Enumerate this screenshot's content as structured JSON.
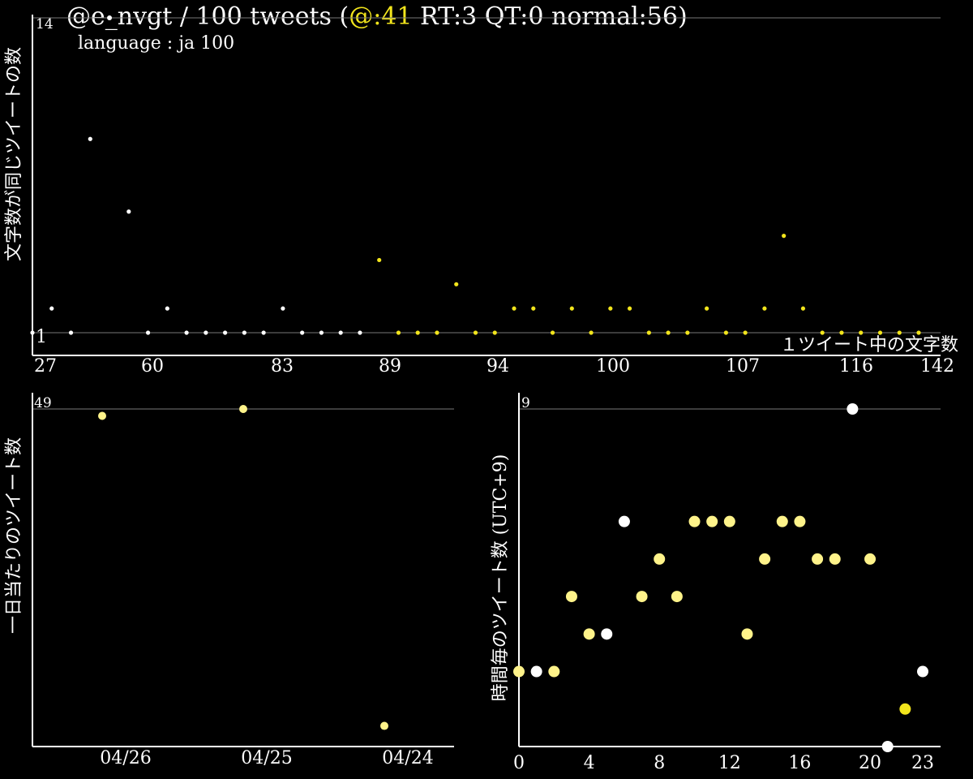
{
  "header": {
    "title_prefix": "@e_nvgt / 100 tweets (",
    "title_accent": "@:41",
    "title_suffix": " RT:3 QT:0 normal:56)",
    "language": "language : ja 100"
  },
  "colors": {
    "white": "#ffffff",
    "yellow": "#f2e51c",
    "pale_yellow": "#fff38a",
    "grid": "#777777"
  },
  "chart_data": [
    {
      "type": "scatter",
      "ylabel": "文字数が同じツイートの数",
      "xlabel": "１ツイート中の文字数",
      "ylim": [
        1,
        14
      ],
      "y_tick_labels": [
        "14",
        "1"
      ],
      "x_tick_labels": [
        "27",
        "60",
        "83",
        "89",
        "94",
        "100",
        "107",
        "116",
        "142"
      ],
      "grid": "horizontal",
      "series": [
        {
          "color": "white",
          "points": [
            [
              27,
              1
            ],
            [
              28,
              2
            ],
            [
              29,
              1
            ],
            [
              30,
              9
            ],
            [
              31,
              14
            ],
            [
              32,
              6
            ],
            [
              33,
              1
            ],
            [
              34,
              2
            ],
            [
              35,
              1
            ],
            [
              36,
              1
            ],
            [
              37,
              1
            ],
            [
              38,
              1
            ],
            [
              39,
              1
            ],
            [
              40,
              2
            ],
            [
              41,
              1
            ],
            [
              42,
              1
            ],
            [
              43,
              1
            ],
            [
              44,
              1
            ]
          ]
        },
        {
          "color": "yellow",
          "points": [
            [
              45,
              4
            ],
            [
              46,
              1
            ],
            [
              47,
              1
            ],
            [
              48,
              1
            ],
            [
              49,
              3
            ],
            [
              50,
              1
            ],
            [
              51,
              1
            ],
            [
              52,
              2
            ],
            [
              53,
              2
            ],
            [
              54,
              1
            ],
            [
              55,
              2
            ],
            [
              56,
              1
            ],
            [
              57,
              2
            ],
            [
              58,
              2
            ],
            [
              59,
              1
            ],
            [
              60,
              1
            ],
            [
              61,
              1
            ],
            [
              62,
              2
            ],
            [
              63,
              1
            ],
            [
              64,
              1
            ],
            [
              65,
              2
            ],
            [
              66,
              5
            ],
            [
              67,
              2
            ],
            [
              68,
              1
            ],
            [
              69,
              1
            ],
            [
              70,
              1
            ],
            [
              71,
              1
            ],
            [
              72,
              1
            ],
            [
              73,
              1
            ]
          ]
        }
      ]
    },
    {
      "type": "scatter",
      "ylabel": "一日当たりのツイート数",
      "ylim": [
        0,
        49
      ],
      "y_tick_labels": [
        "49"
      ],
      "x_tick_labels": [
        "04/26",
        "04/25",
        "04/24"
      ],
      "grid": "horizontal",
      "points": [
        {
          "date": "04/26",
          "value": 48
        },
        {
          "date": "04/25",
          "value": 49
        },
        {
          "date": "04/24",
          "value": 3
        }
      ]
    },
    {
      "type": "scatter",
      "ylabel": "時間毎のツイート数 (UTC+9)",
      "ylim": [
        0,
        9
      ],
      "xlim": [
        0,
        23
      ],
      "y_tick_labels": [
        "9"
      ],
      "x_tick_labels": [
        "0",
        "4",
        "8",
        "12",
        "16",
        "20",
        "23"
      ],
      "grid": "horizontal",
      "points": [
        {
          "hour": 0,
          "count": 2,
          "color": "pale_yellow"
        },
        {
          "hour": 1,
          "count": 2,
          "color": "white"
        },
        {
          "hour": 2,
          "count": 2,
          "color": "pale_yellow"
        },
        {
          "hour": 3,
          "count": 4,
          "color": "pale_yellow"
        },
        {
          "hour": 4,
          "count": 3,
          "color": "pale_yellow"
        },
        {
          "hour": 5,
          "count": 3,
          "color": "white"
        },
        {
          "hour": 6,
          "count": 6,
          "color": "white"
        },
        {
          "hour": 7,
          "count": 4,
          "color": "pale_yellow"
        },
        {
          "hour": 8,
          "count": 5,
          "color": "pale_yellow"
        },
        {
          "hour": 9,
          "count": 4,
          "color": "pale_yellow"
        },
        {
          "hour": 10,
          "count": 6,
          "color": "pale_yellow"
        },
        {
          "hour": 11,
          "count": 6,
          "color": "pale_yellow"
        },
        {
          "hour": 12,
          "count": 6,
          "color": "pale_yellow"
        },
        {
          "hour": 13,
          "count": 3,
          "color": "pale_yellow"
        },
        {
          "hour": 14,
          "count": 5,
          "color": "pale_yellow"
        },
        {
          "hour": 15,
          "count": 6,
          "color": "pale_yellow"
        },
        {
          "hour": 16,
          "count": 6,
          "color": "pale_yellow"
        },
        {
          "hour": 17,
          "count": 5,
          "color": "pale_yellow"
        },
        {
          "hour": 18,
          "count": 5,
          "color": "pale_yellow"
        },
        {
          "hour": 19,
          "count": 9,
          "color": "white"
        },
        {
          "hour": 20,
          "count": 5,
          "color": "pale_yellow"
        },
        {
          "hour": 21,
          "count": 0,
          "color": "white"
        },
        {
          "hour": 22,
          "count": 1,
          "color": "yellow"
        },
        {
          "hour": 23,
          "count": 2,
          "color": "white"
        }
      ]
    }
  ]
}
